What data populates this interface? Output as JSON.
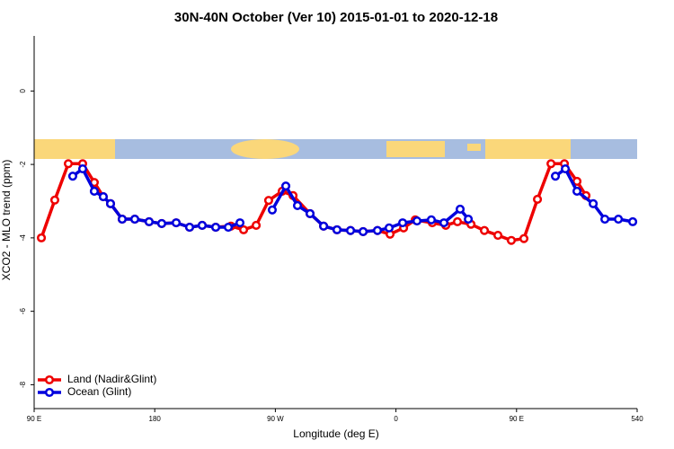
{
  "chart_data": {
    "type": "line",
    "title": "30N-40N October (Ver 10)   2015-01-01 to 2020-12-18",
    "x_label": "Longitude (deg E)",
    "y_label": "XCO2 - MLO trend (ppm)",
    "xlim": [
      90,
      540
    ],
    "xticks": [
      {
        "value": 90,
        "label": "90 E"
      },
      180,
      {
        "value": 270,
        "label": "90 W"
      },
      {
        "value": 360,
        "label": "0"
      },
      {
        "value": 450,
        "label": "90 E"
      },
      540
    ],
    "ylim": [
      -8.65,
      1.5
    ],
    "yticks": [
      0,
      -2,
      -4,
      -6,
      -8
    ],
    "legend": "bottom-left",
    "series": [
      {
        "name": "Land (Nadir&Glint)",
        "color": "#ee0000",
        "x": [
          95.4,
          105.4,
          115.5,
          126.2,
          134.9,
          141.6,
          147.0,
          155.7,
          165.1,
          175.8,
          185.2,
          196.0,
          206.0,
          215.4,
          225.5,
          236.9,
          246.3,
          255.7,
          265.0,
          275.1,
          283.2,
          295.9,
          306.0,
          316.0,
          326.1,
          335.5,
          346.2,
          355.6,
          365.7,
          374.4,
          387.1,
          397.2,
          405.9,
          416.0,
          426.0,
          436.1,
          446.1,
          455.5,
          465.6,
          475.7,
          485.7,
          495.1,
          501.8
        ],
        "values": [
          -4.0,
          -2.97,
          -1.98,
          -1.98,
          -2.49,
          -2.88,
          -3.07,
          -3.49,
          -3.49,
          -3.56,
          -3.61,
          -3.59,
          -3.71,
          -3.66,
          -3.71,
          -3.68,
          -3.78,
          -3.66,
          -2.98,
          -2.73,
          -2.85,
          -3.34,
          -3.68,
          -3.78,
          -3.8,
          -3.83,
          -3.8,
          -3.9,
          -3.73,
          -3.51,
          -3.59,
          -3.66,
          -3.56,
          -3.63,
          -3.8,
          -3.93,
          -4.07,
          -4.02,
          -2.95,
          -1.98,
          -1.98,
          -2.46,
          -2.85
        ]
      },
      {
        "name": "Ocean (Glint)",
        "color": "#0000dd",
        "x": [
          118.8,
          126.2,
          134.9,
          141.6,
          147.0,
          155.7,
          165.1,
          175.8,
          185.2,
          196.0,
          206.0,
          215.4,
          225.5,
          234.9,
          243.6,
          255.0,
          267.7,
          277.8,
          286.5,
          295.9,
          306.0,
          316.0,
          326.1,
          335.5,
          346.2,
          354.9,
          365.0,
          375.7,
          386.4,
          395.8,
          407.9,
          414.0,
          450.0,
          479.0,
          486.4,
          495.1,
          507.2,
          515.9,
          526.0,
          536.7
        ],
        "values": [
          -2.32,
          -2.12,
          -2.73,
          -2.88,
          -3.07,
          -3.49,
          -3.49,
          -3.56,
          -3.61,
          -3.59,
          -3.71,
          -3.66,
          -3.71,
          -3.71,
          -3.59,
          null,
          -3.24,
          -2.59,
          -3.12,
          -3.34,
          -3.68,
          -3.78,
          -3.8,
          -3.83,
          -3.8,
          -3.73,
          -3.59,
          -3.54,
          -3.51,
          -3.59,
          -3.22,
          -3.49,
          null,
          -2.32,
          -2.12,
          -2.73,
          -3.07,
          -3.49,
          -3.49,
          -3.56
        ]
      }
    ]
  }
}
